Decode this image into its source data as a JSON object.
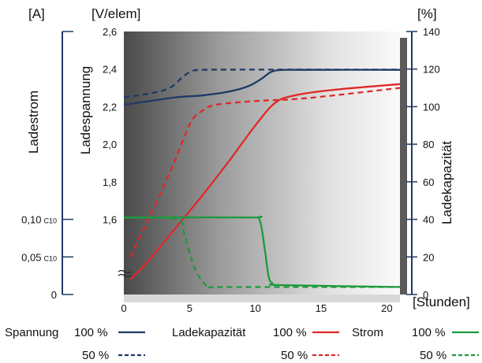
{
  "chart_data": {
    "type": "line",
    "xlabel": "[Stunden]",
    "x_ticks": [
      0,
      5,
      10,
      15,
      20
    ],
    "xlim": [
      0,
      21
    ],
    "axes": {
      "current": {
        "unit": "[A]",
        "label": "Ladestrom",
        "ticks": [
          {
            "label": "0",
            "sub": "",
            "volt": 1.2
          },
          {
            "label": "0,05",
            "sub": "C10",
            "volt": 1.4
          },
          {
            "label": "0,10",
            "sub": "C10",
            "volt": 1.6
          }
        ]
      },
      "voltage": {
        "unit": "[V/elem]",
        "label": "Ladespannung",
        "ylim": [
          1.2,
          2.6
        ],
        "ticks": [
          "1,6",
          "1,8",
          "2,0",
          "2,2",
          "2,4",
          "2,6"
        ],
        "tick_values": [
          1.6,
          1.8,
          2.0,
          2.2,
          2.4,
          2.6
        ]
      },
      "capacity": {
        "unit": "[%]",
        "label": "Ladekapazität",
        "ylim": [
          0,
          140
        ],
        "ticks": [
          "0",
          "20",
          "40",
          "60",
          "80",
          "100",
          "120",
          "140"
        ],
        "tick_values": [
          0,
          20,
          40,
          60,
          80,
          100,
          120,
          140
        ]
      }
    },
    "series": [
      {
        "id": "spannung-100",
        "axis": "voltage",
        "color": "#1f3a64",
        "dash": false,
        "points": [
          [
            0,
            2.21
          ],
          [
            2,
            2.23
          ],
          [
            4,
            2.25
          ],
          [
            6,
            2.26
          ],
          [
            8,
            2.28
          ],
          [
            9.5,
            2.31
          ],
          [
            10.5,
            2.35
          ],
          [
            11.2,
            2.385
          ],
          [
            12,
            2.395
          ],
          [
            14,
            2.396
          ],
          [
            21,
            2.396
          ]
        ]
      },
      {
        "id": "spannung-50",
        "axis": "voltage",
        "color": "#1f3a64",
        "dash": true,
        "points": [
          [
            0,
            2.25
          ],
          [
            2,
            2.27
          ],
          [
            3.5,
            2.3
          ],
          [
            4.5,
            2.36
          ],
          [
            5.2,
            2.39
          ],
          [
            6,
            2.396
          ],
          [
            9,
            2.397
          ],
          [
            21,
            2.397
          ]
        ]
      },
      {
        "id": "kapazitaet-100",
        "axis": "capacity",
        "color": "#e02828",
        "dash": false,
        "points": [
          [
            0.5,
            8
          ],
          [
            2,
            19
          ],
          [
            4,
            36
          ],
          [
            6,
            53
          ],
          [
            8,
            71
          ],
          [
            10,
            90
          ],
          [
            11.5,
            102
          ],
          [
            13,
            106
          ],
          [
            16,
            109
          ],
          [
            21,
            112
          ]
        ]
      },
      {
        "id": "kapazitaet-50",
        "axis": "capacity",
        "color": "#e02828",
        "dash": true,
        "points": [
          [
            0.5,
            20
          ],
          [
            2,
            42
          ],
          [
            3.5,
            65
          ],
          [
            4.5,
            82
          ],
          [
            5.2,
            93
          ],
          [
            6,
            98
          ],
          [
            7,
            101
          ],
          [
            10,
            103
          ],
          [
            13,
            104
          ],
          [
            16,
            106
          ],
          [
            21,
            110
          ]
        ]
      },
      {
        "id": "strom-100",
        "axis": "voltage",
        "color": "#1e9a3c",
        "dash": false,
        "points": [
          [
            0,
            1.61
          ],
          [
            9.5,
            1.61
          ],
          [
            10.3,
            1.6
          ],
          [
            10.7,
            1.45
          ],
          [
            11.0,
            1.3
          ],
          [
            11.3,
            1.26
          ],
          [
            12,
            1.25
          ],
          [
            21,
            1.24
          ]
        ]
      },
      {
        "id": "strom-50",
        "axis": "voltage",
        "color": "#1e9a3c",
        "dash": true,
        "points": [
          [
            0,
            1.61
          ],
          [
            4,
            1.6
          ],
          [
            4.6,
            1.52
          ],
          [
            5,
            1.42
          ],
          [
            5.5,
            1.32
          ],
          [
            6,
            1.27
          ],
          [
            6.5,
            1.24
          ],
          [
            8,
            1.24
          ],
          [
            21,
            1.24
          ]
        ]
      }
    ],
    "legend": [
      {
        "group": "Spannung",
        "label": "100 %",
        "series": "spannung-100"
      },
      {
        "group": "",
        "label": "50 %",
        "series": "spannung-50"
      },
      {
        "group": "Ladekapazität",
        "label": "100 %",
        "series": "kapazitaet-100"
      },
      {
        "group": "",
        "label": "50 %",
        "series": "kapazitaet-50"
      },
      {
        "group": "Strom",
        "label": "100 %",
        "series": "strom-100"
      },
      {
        "group": "",
        "label": "50 %",
        "series": "strom-50"
      }
    ]
  }
}
